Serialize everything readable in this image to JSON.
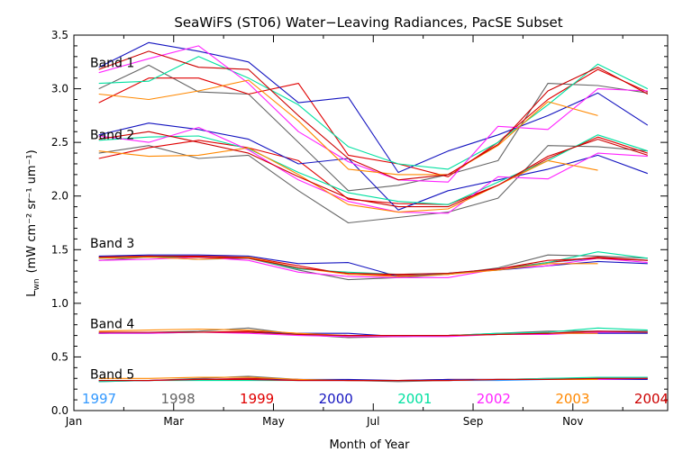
{
  "chart_data": {
    "type": "line",
    "title": "SeaWiFS (ST06) Water−Leaving Radiances, PacSE Subset",
    "xlabel": "Month of Year",
    "ylabel_main": "L",
    "ylabel_sub": "wn",
    "ylabel_units": "(mW cm⁻² sr⁻¹ um⁻¹)",
    "xlim": [
      1,
      12.9
    ],
    "ylim": [
      0.0,
      3.5
    ],
    "x_ticks": [
      {
        "label": "Jan",
        "value": 1
      },
      {
        "label": "Mar",
        "value": 3
      },
      {
        "label": "May",
        "value": 5
      },
      {
        "label": "Jul",
        "value": 7
      },
      {
        "label": "Sep",
        "value": 9
      },
      {
        "label": "Nov",
        "value": 11
      }
    ],
    "y_ticks": [
      {
        "label": "0.0",
        "value": 0.0
      },
      {
        "label": "0.5",
        "value": 0.5
      },
      {
        "label": "1.0",
        "value": 1.0
      },
      {
        "label": "1.5",
        "value": 1.5
      },
      {
        "label": "2.0",
        "value": 2.0
      },
      {
        "label": "2.5",
        "value": 2.5
      },
      {
        "label": "3.0",
        "value": 3.0
      },
      {
        "label": "3.5",
        "value": 3.5
      }
    ],
    "band_labels": [
      {
        "label": "Band 1",
        "value": 3.2
      },
      {
        "label": "Band 2",
        "value": 2.53
      },
      {
        "label": "Band 3",
        "value": 1.52
      },
      {
        "label": "Band 4",
        "value": 0.77
      },
      {
        "label": "Band 5",
        "value": 0.3
      }
    ],
    "x": [
      1.5,
      2.5,
      3.5,
      4.5,
      5.5,
      6.5,
      7.5,
      8.5,
      9.5,
      10.5,
      11.5,
      12.5
    ],
    "legend_placement": "bottom",
    "series": [
      {
        "name": "1997",
        "color": "#3399ff",
        "bands": [
          null,
          null,
          [
            null,
            null,
            null,
            null,
            null,
            null,
            null,
            1.28,
            1.32,
            1.38,
            1.42,
            1.4
          ],
          [
            null,
            null,
            null,
            null,
            null,
            null,
            null,
            0.7,
            0.71,
            0.72,
            0.73,
            0.73
          ],
          [
            null,
            null,
            null,
            null,
            null,
            null,
            null,
            0.28,
            0.28,
            0.29,
            0.3,
            0.3
          ]
        ]
      },
      {
        "name": "1998",
        "color": "#666666",
        "bands": [
          [
            3.0,
            3.22,
            2.97,
            2.95,
            2.5,
            2.05,
            2.1,
            2.2,
            2.33,
            3.05,
            3.03,
            2.96
          ],
          [
            2.4,
            2.47,
            2.35,
            2.38,
            2.05,
            1.75,
            1.8,
            1.85,
            1.98,
            2.47,
            2.46,
            2.42
          ],
          [
            1.4,
            1.43,
            1.41,
            1.42,
            1.31,
            1.22,
            1.24,
            1.27,
            1.33,
            1.45,
            1.44,
            1.42
          ],
          [
            0.72,
            0.73,
            0.74,
            0.77,
            0.71,
            0.68,
            0.69,
            0.7,
            0.72,
            0.74,
            0.74,
            0.74
          ],
          [
            0.27,
            0.28,
            0.3,
            0.32,
            0.29,
            0.28,
            0.27,
            0.28,
            0.29,
            0.3,
            0.3,
            0.3
          ]
        ]
      },
      {
        "name": "1999",
        "color": "#e00000",
        "bands": [
          [
            2.87,
            3.1,
            3.1,
            2.95,
            3.05,
            2.38,
            2.3,
            2.18,
            2.5,
            2.9,
            3.18,
            2.97
          ],
          [
            2.35,
            2.45,
            2.52,
            2.45,
            2.33,
            1.97,
            1.93,
            1.92,
            2.1,
            2.35,
            2.55,
            2.4
          ],
          [
            1.43,
            1.44,
            1.44,
            1.43,
            1.35,
            1.27,
            1.26,
            1.27,
            1.32,
            1.38,
            1.43,
            1.4
          ],
          [
            0.72,
            0.73,
            0.73,
            0.74,
            0.72,
            0.69,
            0.69,
            0.7,
            0.71,
            0.72,
            0.73,
            0.73
          ],
          [
            0.28,
            0.28,
            0.29,
            0.3,
            0.29,
            0.28,
            0.28,
            0.29,
            0.29,
            0.29,
            0.29,
            0.3
          ]
        ]
      },
      {
        "name": "2000",
        "color": "#1515c0",
        "bands": [
          [
            3.2,
            3.43,
            3.35,
            3.25,
            2.87,
            2.92,
            2.22,
            2.42,
            2.57,
            2.75,
            2.96,
            2.66
          ],
          [
            2.57,
            2.68,
            2.62,
            2.53,
            2.3,
            2.35,
            1.87,
            2.05,
            2.15,
            2.25,
            2.38,
            2.21
          ],
          [
            1.44,
            1.45,
            1.45,
            1.44,
            1.37,
            1.38,
            1.25,
            1.28,
            1.31,
            1.35,
            1.39,
            1.37
          ],
          [
            0.72,
            0.73,
            0.73,
            0.73,
            0.72,
            0.72,
            0.69,
            0.7,
            0.71,
            0.72,
            0.72,
            0.72
          ],
          [
            0.28,
            0.28,
            0.29,
            0.29,
            0.29,
            0.29,
            0.28,
            0.29,
            0.29,
            0.29,
            0.29,
            0.29
          ]
        ]
      },
      {
        "name": "2001",
        "color": "#00e0a0",
        "bands": [
          [
            3.05,
            3.07,
            3.3,
            3.1,
            2.85,
            2.46,
            2.3,
            2.25,
            2.5,
            2.85,
            3.23,
            3.0
          ],
          [
            2.52,
            2.55,
            2.56,
            2.44,
            2.22,
            2.03,
            1.95,
            1.92,
            2.13,
            2.33,
            2.57,
            2.42
          ],
          [
            1.42,
            1.43,
            1.43,
            1.42,
            1.32,
            1.29,
            1.27,
            1.28,
            1.31,
            1.38,
            1.48,
            1.42
          ],
          [
            0.72,
            0.72,
            0.73,
            0.73,
            0.71,
            0.7,
            0.7,
            0.7,
            0.72,
            0.73,
            0.77,
            0.75
          ],
          [
            0.27,
            0.28,
            0.28,
            0.28,
            0.28,
            0.28,
            0.28,
            0.28,
            0.29,
            0.3,
            0.31,
            0.31
          ]
        ]
      },
      {
        "name": "2002",
        "color": "#ff22ff",
        "bands": [
          [
            3.15,
            3.28,
            3.4,
            3.05,
            2.6,
            2.32,
            2.15,
            2.13,
            2.65,
            2.62,
            3.0,
            2.98
          ],
          [
            2.56,
            2.5,
            2.64,
            2.43,
            2.15,
            1.95,
            1.85,
            1.84,
            2.18,
            2.16,
            2.4,
            2.37
          ],
          [
            1.4,
            1.41,
            1.43,
            1.4,
            1.29,
            1.25,
            1.24,
            1.24,
            1.32,
            1.35,
            1.42,
            1.38
          ],
          [
            0.72,
            0.72,
            0.73,
            0.72,
            0.7,
            0.69,
            0.69,
            0.69,
            0.71,
            0.71,
            0.73,
            0.73
          ],
          [
            0.28,
            0.28,
            0.29,
            0.29,
            0.28,
            0.28,
            0.28,
            0.28,
            0.29,
            0.29,
            0.29,
            0.3
          ]
        ]
      },
      {
        "name": "2003",
        "color": "#ff8800",
        "bands": [
          [
            2.95,
            2.9,
            2.98,
            3.08,
            2.7,
            2.25,
            2.2,
            2.2,
            2.47,
            2.88,
            2.75,
            null
          ],
          [
            2.42,
            2.37,
            2.38,
            2.45,
            2.2,
            1.92,
            1.85,
            1.88,
            2.1,
            2.33,
            2.24,
            null
          ],
          [
            1.42,
            1.43,
            1.41,
            1.43,
            1.33,
            1.27,
            1.25,
            1.27,
            1.31,
            1.37,
            1.37,
            null
          ],
          [
            0.74,
            0.75,
            0.76,
            0.75,
            0.72,
            0.7,
            0.7,
            0.7,
            0.71,
            0.72,
            0.72,
            null
          ],
          [
            0.3,
            0.3,
            0.31,
            0.31,
            0.29,
            0.28,
            0.28,
            0.28,
            0.29,
            0.29,
            0.29,
            null
          ]
        ]
      },
      {
        "name": "2004",
        "color": "#cc0000",
        "bands": [
          [
            3.18,
            3.35,
            3.2,
            3.18,
            2.75,
            2.35,
            2.15,
            2.2,
            2.48,
            2.98,
            3.2,
            2.95
          ],
          [
            2.53,
            2.6,
            2.5,
            2.4,
            2.18,
            1.98,
            1.9,
            1.9,
            2.1,
            2.37,
            2.53,
            2.38
          ],
          [
            1.43,
            1.44,
            1.43,
            1.42,
            1.33,
            1.28,
            1.27,
            1.28,
            1.32,
            1.4,
            1.42,
            1.4
          ],
          [
            0.73,
            0.73,
            0.73,
            0.73,
            0.71,
            0.7,
            0.7,
            0.7,
            0.71,
            0.72,
            0.74,
            0.73
          ],
          [
            0.28,
            0.28,
            0.29,
            0.29,
            0.28,
            0.28,
            0.28,
            0.28,
            0.29,
            0.29,
            0.3,
            0.3
          ]
        ]
      }
    ]
  }
}
